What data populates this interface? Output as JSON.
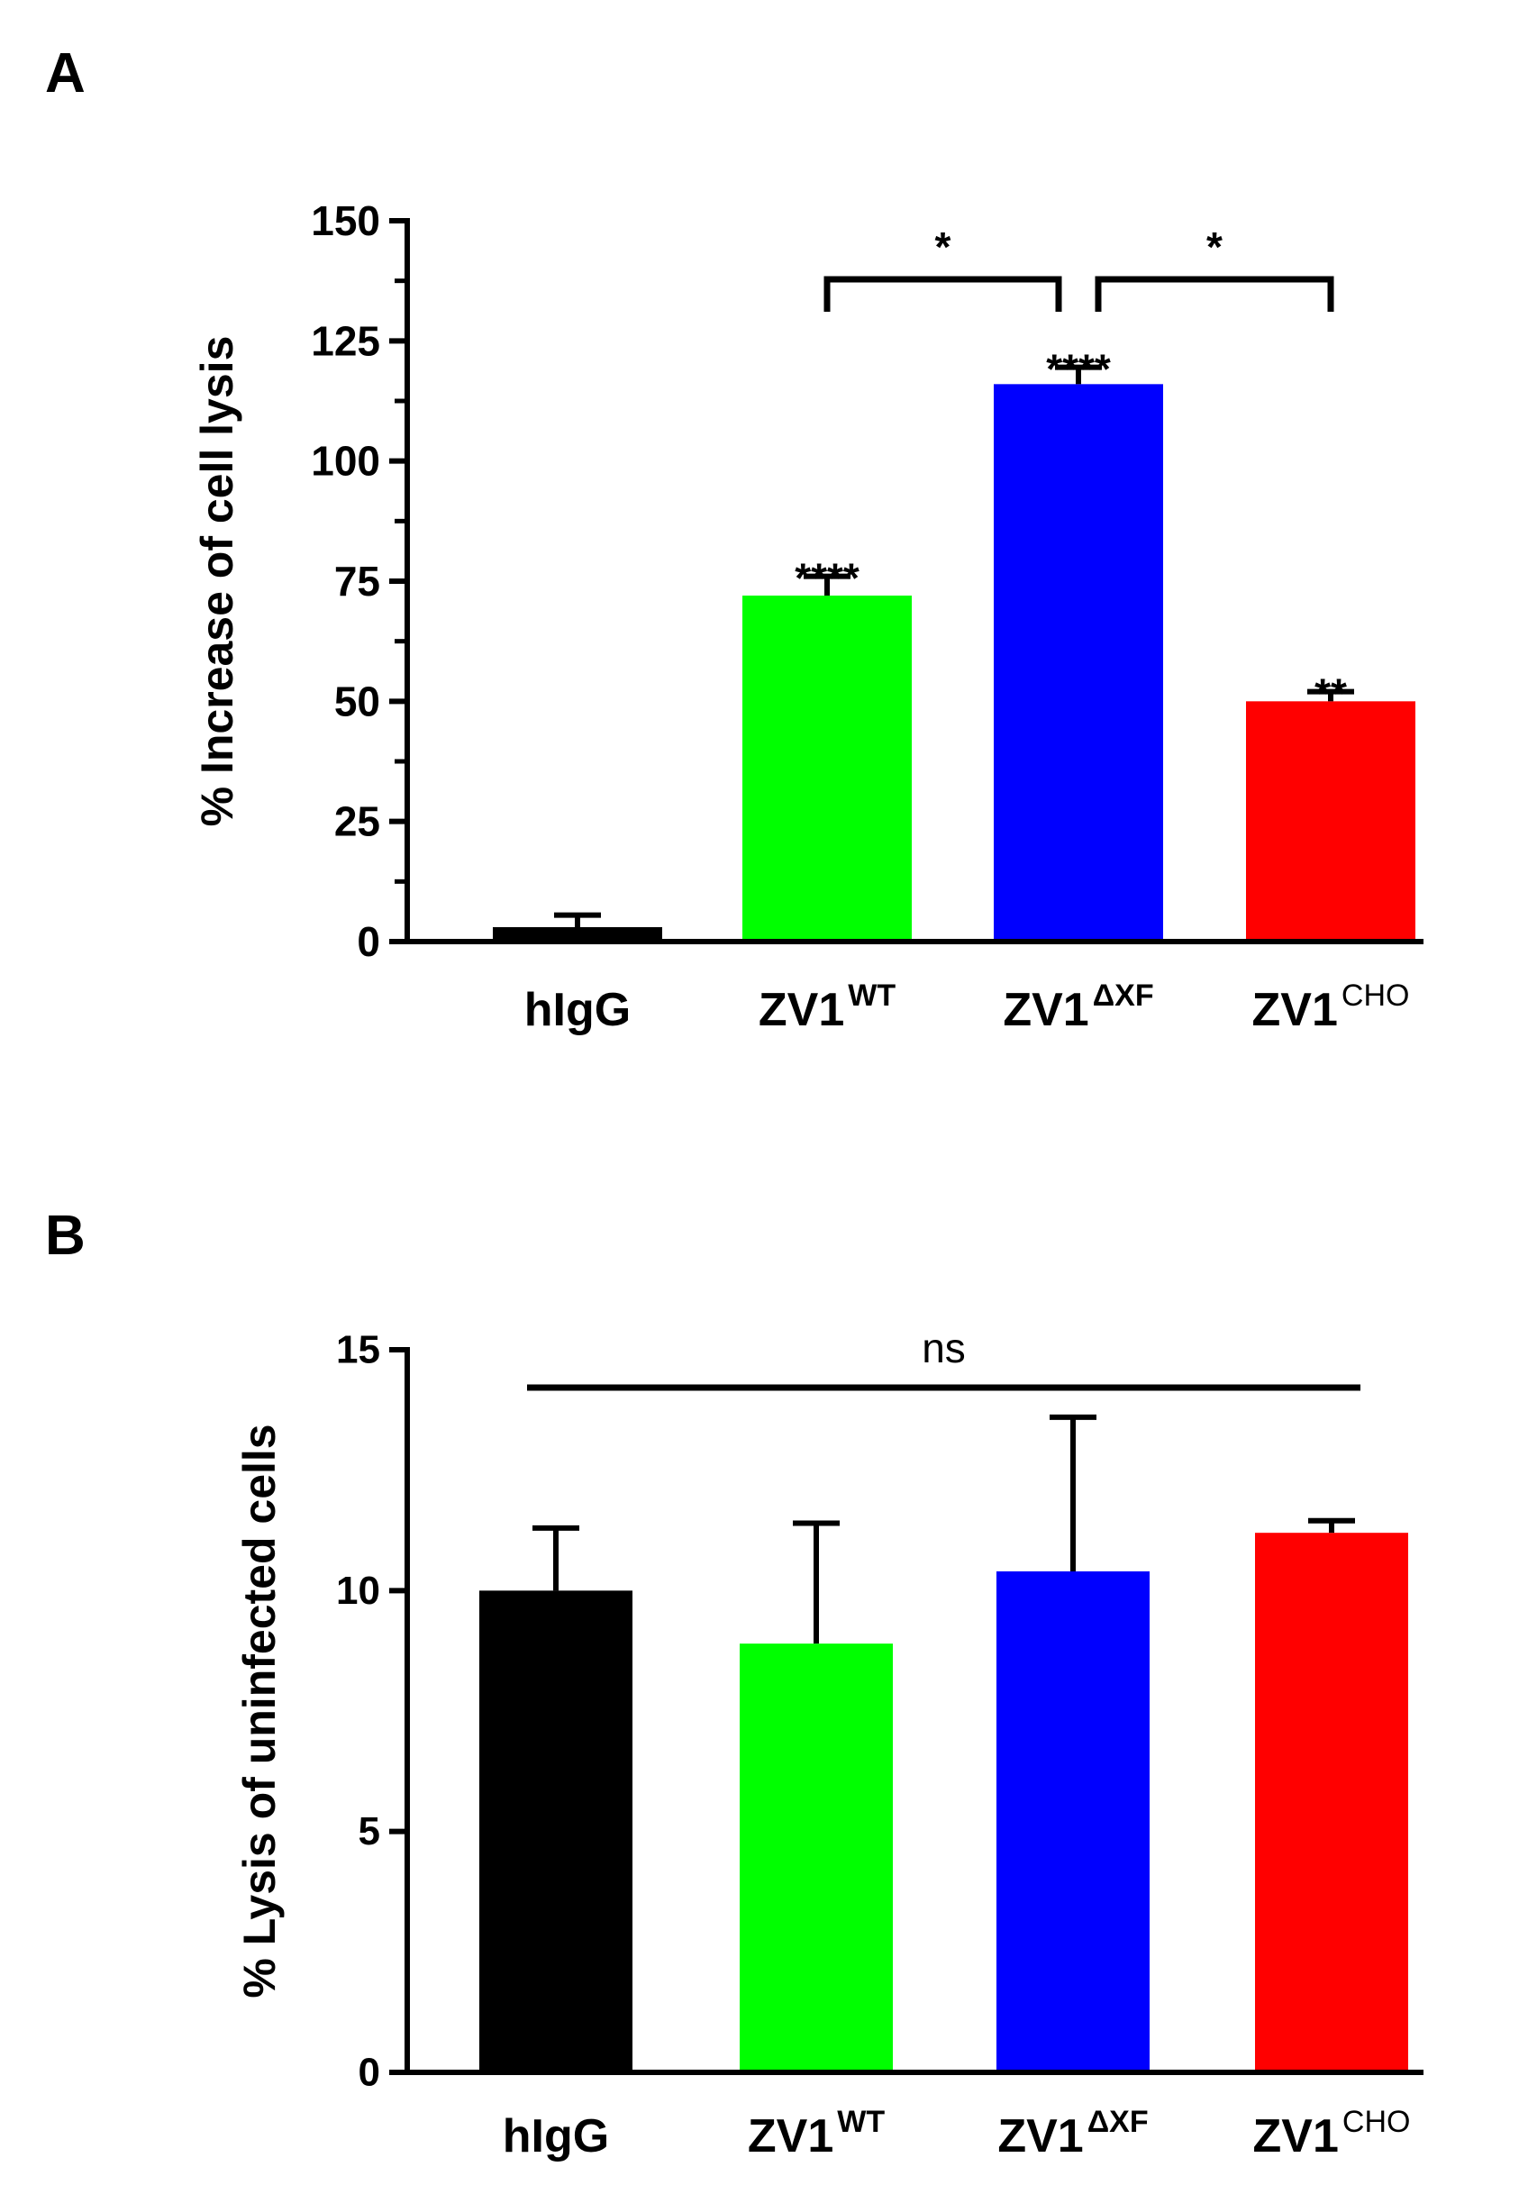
{
  "chart_data": [
    {
      "type": "bar",
      "panel": "A",
      "ylabel": "% Increase of cell lysis",
      "xlabel": "",
      "ylim": [
        0,
        150
      ],
      "yticks": [
        "0",
        "25",
        "50",
        "75",
        "100",
        "125",
        "150"
      ],
      "categories": [
        {
          "base": "hIgG",
          "sup": ""
        },
        {
          "base": "ZV1",
          "sup": "WT"
        },
        {
          "base": "ZV1",
          "sup": "ΔXF"
        },
        {
          "base": "ZV1",
          "sup": "CHO"
        }
      ],
      "values": [
        3,
        72,
        116,
        50
      ],
      "errors": [
        2.5,
        4,
        3.5,
        2
      ],
      "colors": [
        "#000000",
        "#00ff00",
        "#0000ff",
        "#ff0000"
      ],
      "bar_annotations": [
        "",
        "****",
        "****",
        "**"
      ],
      "comparisons": [
        {
          "from": 1,
          "to": 2,
          "label": "*"
        },
        {
          "from": 2,
          "to": 3,
          "label": "*"
        }
      ]
    },
    {
      "type": "bar",
      "panel": "B",
      "ylabel": "% Lysis of uninfected cells",
      "xlabel": "",
      "ylim": [
        0,
        15
      ],
      "yticks": [
        "0",
        "5",
        "10",
        "15"
      ],
      "categories": [
        {
          "base": "hIgG",
          "sup": ""
        },
        {
          "base": "ZV1",
          "sup": "WT"
        },
        {
          "base": "ZV1",
          "sup": "ΔXF"
        },
        {
          "base": "ZV1",
          "sup": "CHO"
        }
      ],
      "values": [
        10.0,
        8.9,
        10.4,
        11.2
      ],
      "errors": [
        1.3,
        2.5,
        3.2,
        0.25
      ],
      "colors": [
        "#000000",
        "#00ff00",
        "#0000ff",
        "#ff0000"
      ],
      "bar_annotations": [
        "",
        "",
        "",
        ""
      ],
      "comparisons": [
        {
          "from": 0,
          "to": 3,
          "label": "ns"
        }
      ]
    }
  ]
}
